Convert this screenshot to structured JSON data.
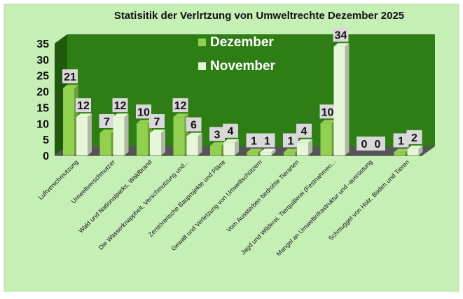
{
  "chart_data": {
    "type": "bar",
    "title": "Statisitik der Verlrtzung von Umweltrechte Dezember 2025",
    "categories": [
      "Luftverschmutzung",
      "Umweltverschmutzer",
      "Wald und Nationalparks, Waldbrand",
      "Die Wasserknappheit, Verschmutzung und...",
      "Zerstörerische Bauprojekte und Pläne",
      "Gewalt und Verletzung von Umweltschützern",
      "Vom Aussterben bedrohte Tierarten",
      "Jagd und Wilderei, Tierquälerei (Festnahmen...",
      "Mangel an Umweltinfrastruktur und -ausrüstung",
      "Schmuggel von Holz, Boden und Tieren"
    ],
    "series": [
      {
        "name": "Dezember",
        "values": [
          21,
          7,
          10,
          12,
          3,
          1,
          1,
          10,
          0,
          1
        ]
      },
      {
        "name": "November",
        "values": [
          12,
          12,
          7,
          6,
          4,
          1,
          4,
          34,
          0,
          2
        ]
      }
    ],
    "ylim": [
      0,
      35
    ],
    "yticks": [
      0,
      5,
      10,
      15,
      20,
      25,
      30,
      35
    ],
    "legend_position": "top-center, inside plot",
    "grid": false,
    "colors": {
      "background": "#c6efb6",
      "plot_wall": "#2e7d15",
      "dezember": "#92d050",
      "november": "#e6f7d8",
      "label_box": "#d9d9d9",
      "floor": "#555555"
    }
  }
}
